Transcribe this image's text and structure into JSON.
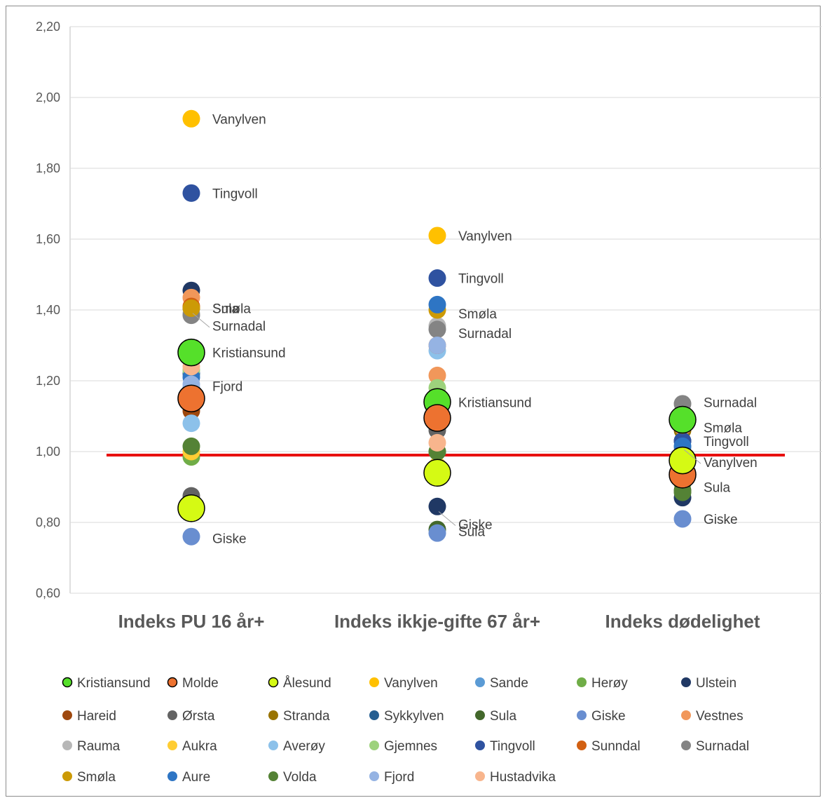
{
  "chart_data": {
    "type": "scatter",
    "title": "",
    "xlabel": "",
    "ylabel": "",
    "ylim": [
      0.6,
      2.2
    ],
    "yticks": [
      "0,60",
      "0,80",
      "1,00",
      "1,20",
      "1,40",
      "1,60",
      "1,80",
      "2,00",
      "2,20"
    ],
    "categories": [
      "Indeks PU 16 år+",
      "Indeks ikkje-gifte 67 år+",
      "Indeks dødelighet"
    ],
    "reference_line": {
      "y": 0.99,
      "color": "#e8100f"
    },
    "grid": true,
    "legend_position": "bottom",
    "series": [
      {
        "name": "Kristiansund",
        "color": "#55e02a",
        "large": true,
        "values": [
          1.28,
          1.14,
          1.09
        ]
      },
      {
        "name": "Molde",
        "color": "#ed7230",
        "large": true,
        "values": [
          1.15,
          1.095,
          0.935
        ]
      },
      {
        "name": "Ålesund",
        "color": "#d5fa14",
        "large": true,
        "values": [
          0.84,
          0.94,
          0.975
        ]
      },
      {
        "name": "Vanylven",
        "color": "#ffc000",
        "values": [
          1.94,
          1.61,
          0.98
        ]
      },
      {
        "name": "Sande",
        "color": "#5b9bd5",
        "values": [
          1.18,
          1.16,
          0.96
        ]
      },
      {
        "name": "Herøy",
        "color": "#70ad47",
        "values": [
          0.985,
          1.0,
          0.91
        ]
      },
      {
        "name": "Ulstein",
        "color": "#203864",
        "values": [
          1.455,
          0.845,
          0.87
        ]
      },
      {
        "name": "Hareid",
        "color": "#9e480e",
        "values": [
          1.115,
          1.07,
          0.93
        ]
      },
      {
        "name": "Ørsta",
        "color": "#636363",
        "values": [
          0.875,
          1.06,
          0.92
        ]
      },
      {
        "name": "Stranda",
        "color": "#997300",
        "values": [
          1.165,
          1.14,
          1.06
        ]
      },
      {
        "name": "Sykkylven",
        "color": "#255e91",
        "values": [
          1.22,
          1.12,
          1.03
        ]
      },
      {
        "name": "Sula",
        "color": "#43682b",
        "values": [
          1.405,
          0.78,
          0.89
        ]
      },
      {
        "name": "Giske",
        "color": "#698ed0",
        "values": [
          0.76,
          0.77,
          0.81
        ]
      },
      {
        "name": "Vestnes",
        "color": "#f1975a",
        "values": [
          1.435,
          1.215,
          1.07
        ]
      },
      {
        "name": "Rauma",
        "color": "#b7b7b7",
        "values": [
          1.39,
          1.355,
          1.01
        ]
      },
      {
        "name": "Aukra",
        "color": "#ffcd33",
        "values": [
          1.0,
          0.96,
          0.94
        ]
      },
      {
        "name": "Averøy",
        "color": "#8cc1ea",
        "values": [
          1.08,
          1.285,
          0.95
        ]
      },
      {
        "name": "Gjemnes",
        "color": "#9dd27c",
        "values": [
          1.23,
          1.18,
          1.0
        ]
      },
      {
        "name": "Tingvoll",
        "color": "#2f52a0",
        "values": [
          1.73,
          1.49,
          1.03
        ]
      },
      {
        "name": "Sunndal",
        "color": "#d26012",
        "values": [
          1.41,
          1.3,
          1.075
        ]
      },
      {
        "name": "Surnadal",
        "color": "#848484",
        "values": [
          1.385,
          1.345,
          1.135
        ]
      },
      {
        "name": "Smøla",
        "color": "#cc9a06",
        "values": [
          1.405,
          1.4,
          1.075
        ]
      },
      {
        "name": "Aure",
        "color": "#2e75c4",
        "values": [
          1.21,
          1.415,
          1.015
        ]
      },
      {
        "name": "Volda",
        "color": "#548235",
        "values": [
          1.015,
          1.0,
          0.885
        ]
      },
      {
        "name": "Fjord",
        "color": "#95b3e3",
        "values": [
          1.19,
          1.3,
          0.97
        ]
      },
      {
        "name": "Hustadvika",
        "color": "#f8b58d",
        "values": [
          1.24,
          1.025,
          0.975
        ]
      }
    ],
    "data_labels": [
      {
        "cat": 0,
        "y": 1.94,
        "text": "Vanylven"
      },
      {
        "cat": 0,
        "y": 1.73,
        "text": "Tingvoll"
      },
      {
        "cat": 0,
        "y": 1.405,
        "text": "Smøla",
        "overlap": "Sula"
      },
      {
        "cat": 0,
        "y": 1.355,
        "text": "Surnadal",
        "leader": true
      },
      {
        "cat": 0,
        "y": 1.28,
        "text": "Kristiansund"
      },
      {
        "cat": 0,
        "y": 1.185,
        "text": "Fjord"
      },
      {
        "cat": 0,
        "y": 0.755,
        "text": "Giske"
      },
      {
        "cat": 1,
        "y": 1.61,
        "text": "Vanylven"
      },
      {
        "cat": 1,
        "y": 1.49,
        "text": "Tingvoll"
      },
      {
        "cat": 1,
        "y": 1.39,
        "text": "Smøla"
      },
      {
        "cat": 1,
        "y": 1.335,
        "text": "Surnadal"
      },
      {
        "cat": 1,
        "y": 1.14,
        "text": "Kristiansund"
      },
      {
        "cat": 1,
        "y": 0.795,
        "text": "Giske",
        "leader": true
      },
      {
        "cat": 1,
        "y": 0.775,
        "text": "Sula"
      },
      {
        "cat": 2,
        "y": 1.14,
        "text": "Surnadal"
      },
      {
        "cat": 2,
        "y": 1.068,
        "text": "Smøla"
      },
      {
        "cat": 2,
        "y": 1.03,
        "text": "Tingvoll"
      },
      {
        "cat": 2,
        "y": 0.97,
        "text": "Vanylven",
        "leader": true
      },
      {
        "cat": 2,
        "y": 0.9,
        "text": "Sula"
      },
      {
        "cat": 2,
        "y": 0.81,
        "text": "Giske"
      }
    ]
  }
}
